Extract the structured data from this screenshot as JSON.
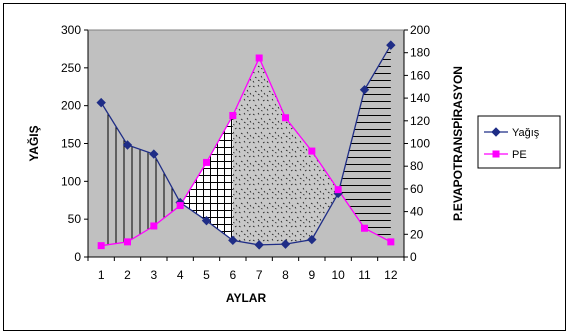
{
  "chart_data": {
    "type": "line",
    "categories": [
      "1",
      "2",
      "3",
      "4",
      "5",
      "6",
      "7",
      "8",
      "9",
      "10",
      "11",
      "12"
    ],
    "xlabel": "AYLAR",
    "ylabel": "YAĞIŞ",
    "y2label": "P.EVAPOTRANSPİRASYON",
    "ylim": [
      0,
      300
    ],
    "y2lim": [
      0,
      200
    ],
    "yticks": [
      "0",
      "50",
      "100",
      "150",
      "200",
      "250",
      "300"
    ],
    "y2ticks": [
      "0",
      "20",
      "40",
      "60",
      "80",
      "100",
      "120",
      "140",
      "160",
      "180",
      "200"
    ],
    "grid": false,
    "legend_position": "right",
    "plot_background": "#c0c0c0",
    "series": [
      {
        "name": "Yağış",
        "axis": "left",
        "color": "#1f2d86",
        "marker": "diamond",
        "values": [
          204,
          148,
          136,
          72,
          48,
          22,
          16,
          17,
          23,
          84,
          221,
          280
        ]
      },
      {
        "name": "PE",
        "axis": "left",
        "color": "#ff00ff",
        "marker": "square",
        "values": [
          15,
          20,
          41,
          68,
          125,
          187,
          263,
          184,
          140,
          89,
          38,
          20
        ]
      }
    ]
  }
}
